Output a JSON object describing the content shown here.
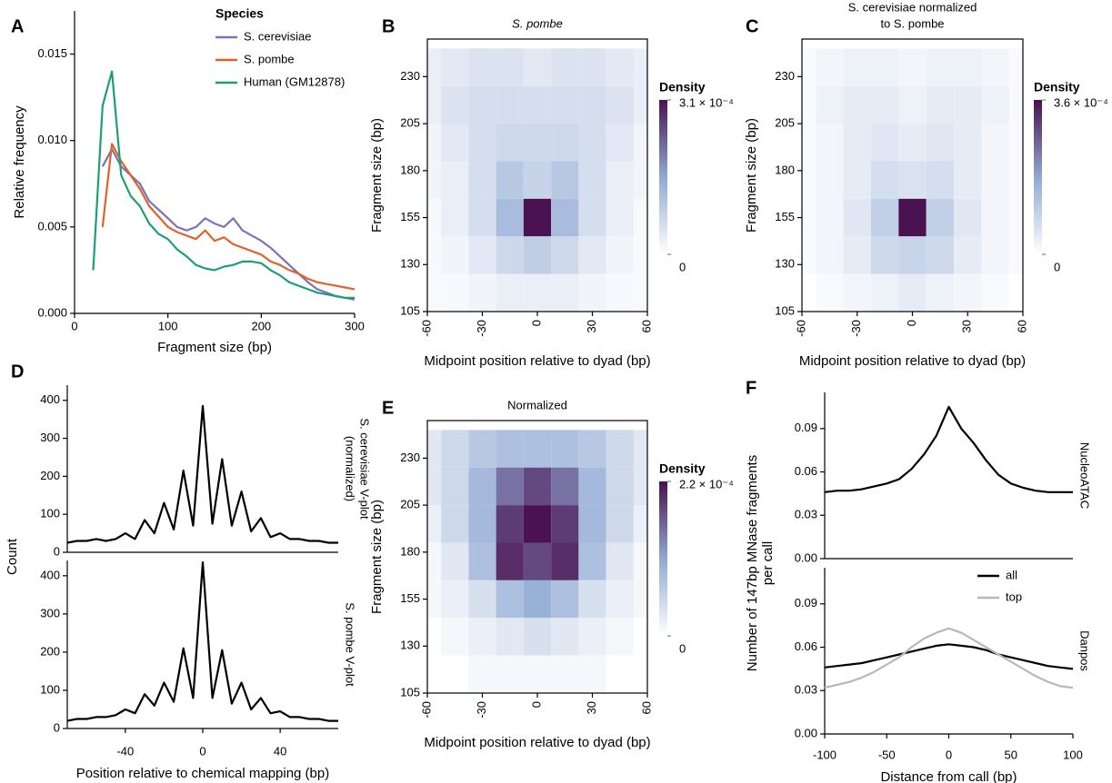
{
  "chart_data": [
    {
      "type": "line",
      "panel": "A",
      "x": [
        20,
        30,
        40,
        50,
        60,
        70,
        80,
        90,
        100,
        110,
        120,
        130,
        140,
        150,
        160,
        170,
        180,
        190,
        200,
        210,
        220,
        230,
        240,
        250,
        260,
        270,
        280,
        290,
        300
      ],
      "xlim": [
        0,
        300
      ],
      "xticks": [
        0,
        100,
        200,
        300
      ],
      "ylim": [
        0,
        0.0175
      ],
      "yticks": [
        {
          "value": 0,
          "label": "0.000"
        },
        {
          "value": 0.005,
          "label": "0.005"
        },
        {
          "value": 0.01,
          "label": "0.010"
        },
        {
          "value": 0.015,
          "label": "0.015"
        }
      ],
      "xlabel": "Fragment size (bp)",
      "ylabel": "Relative frequency",
      "legend_title": "Species",
      "legend": "top-right",
      "series": [
        {
          "name": "S. cerevisiae",
          "color": "#7b72b8",
          "values": [
            null,
            0.0085,
            0.0095,
            0.0085,
            0.008,
            0.0075,
            0.0065,
            0.006,
            0.0055,
            0.005,
            0.0048,
            0.005,
            0.0055,
            0.0052,
            0.005,
            0.0055,
            0.0048,
            0.0045,
            0.0042,
            0.0038,
            0.0033,
            0.0028,
            0.0023,
            0.0018,
            0.0014,
            0.0012,
            0.001,
            0.0009,
            0.0008
          ]
        },
        {
          "name": "S. pombe",
          "color": "#e0622a",
          "values": [
            null,
            0.005,
            0.0098,
            0.0088,
            0.008,
            0.0072,
            0.0062,
            0.0056,
            0.005,
            0.0047,
            0.0045,
            0.0043,
            0.0048,
            0.0042,
            0.0044,
            0.004,
            0.0038,
            0.0036,
            0.0034,
            0.003,
            0.0028,
            0.0025,
            0.0023,
            0.002,
            0.0018,
            0.0017,
            0.0016,
            0.0015,
            0.0014
          ]
        },
        {
          "name": "Human (GM12878)",
          "color": "#1e9e77",
          "values": [
            0.0025,
            0.012,
            0.014,
            0.008,
            0.0068,
            0.0062,
            0.0052,
            0.0046,
            0.0043,
            0.0037,
            0.0033,
            0.0028,
            0.0026,
            0.0025,
            0.0027,
            0.0028,
            0.003,
            0.003,
            0.0029,
            0.0025,
            0.0022,
            0.0018,
            0.0016,
            0.0014,
            0.0012,
            0.0011,
            0.001,
            0.0009,
            0.0009
          ]
        }
      ]
    },
    {
      "type": "heatmap",
      "panel": "B",
      "title": [
        "S. pombe"
      ],
      "x": [
        -60,
        -45,
        -30,
        -15,
        0,
        15,
        30,
        45,
        60
      ],
      "y": [
        235,
        215,
        195,
        175,
        155,
        135,
        115
      ],
      "z": [
        [
          3e-05,
          4e-05,
          5e-05,
          5e-05,
          4e-05,
          5e-05,
          5e-05,
          4e-05,
          3e-05
        ],
        [
          3e-05,
          5e-05,
          6e-05,
          6e-05,
          6e-05,
          6e-05,
          6e-05,
          5e-05,
          3e-05
        ],
        [
          2e-05,
          4e-05,
          6e-05,
          7e-05,
          7e-05,
          7e-05,
          6e-05,
          4e-05,
          2e-05
        ],
        [
          2e-05,
          3e-05,
          6e-05,
          0.0001,
          8e-05,
          0.0001,
          6e-05,
          3e-05,
          2e-05
        ],
        [
          1e-05,
          3e-05,
          6e-05,
          0.00012,
          0.00031,
          0.00012,
          6e-05,
          3e-05,
          1e-05
        ],
        [
          1e-05,
          2e-05,
          4e-05,
          7e-05,
          9e-05,
          7e-05,
          4e-05,
          2e-05,
          1e-05
        ],
        [
          1e-05,
          1e-05,
          2e-05,
          3e-05,
          3e-05,
          3e-05,
          2e-05,
          1e-05,
          1e-05
        ]
      ],
      "xlim": [
        -60,
        60
      ],
      "xticks": [
        -60,
        -30,
        0,
        30,
        60
      ],
      "ylim": [
        105,
        250
      ],
      "yticks": [
        105,
        130,
        155,
        180,
        205,
        230
      ],
      "xlabel": "Midpoint position relative to dyad (bp)",
      "ylabel": "Fragment size (bp)",
      "colorbar": {
        "title": "Density",
        "ticks": [
          0,
          {
            "value": 0.00031,
            "label": "3.1 × 10⁻⁴"
          }
        ]
      }
    },
    {
      "type": "heatmap",
      "panel": "C",
      "title": [
        "S. cerevisiae normalized",
        "to S. pombe"
      ],
      "x": [
        -60,
        -45,
        -30,
        -15,
        0,
        15,
        30,
        45,
        60
      ],
      "y": [
        235,
        215,
        195,
        175,
        155,
        135,
        115
      ],
      "z": [
        [
          1e-05,
          2e-05,
          3e-05,
          3e-05,
          2e-05,
          3e-05,
          3e-05,
          2e-05,
          1e-05
        ],
        [
          1e-05,
          3e-05,
          4e-05,
          4e-05,
          3e-05,
          4e-05,
          4e-05,
          3e-05,
          1e-05
        ],
        [
          1e-05,
          2e-05,
          4e-05,
          5e-05,
          4e-05,
          5e-05,
          4e-05,
          2e-05,
          1e-05
        ],
        [
          1e-05,
          2e-05,
          4e-05,
          7e-05,
          6e-05,
          7e-05,
          4e-05,
          2e-05,
          1e-05
        ],
        [
          1e-05,
          2e-05,
          5e-05,
          0.0001,
          0.00036,
          0.0001,
          5e-05,
          2e-05,
          1e-05
        ],
        [
          1e-05,
          2e-05,
          4e-05,
          8e-05,
          9e-05,
          8e-05,
          4e-05,
          2e-05,
          1e-05
        ],
        [
          0,
          1e-05,
          2e-05,
          3e-05,
          4e-05,
          3e-05,
          2e-05,
          1e-05,
          0
        ]
      ],
      "xlim": [
        -60,
        60
      ],
      "xticks": [
        -60,
        -30,
        0,
        30,
        60
      ],
      "ylim": [
        105,
        250
      ],
      "yticks": [
        105,
        130,
        155,
        180,
        205,
        230
      ],
      "xlabel": "Midpoint position relative to dyad (bp)",
      "ylabel": "Fragment size (bp)",
      "colorbar": {
        "title": "Density",
        "ticks": [
          0,
          {
            "value": 0.00036,
            "label": "3.6 × 10⁻⁴"
          }
        ]
      }
    },
    {
      "type": "line",
      "panel": "D",
      "x": [
        -70,
        -65,
        -60,
        -55,
        -50,
        -45,
        -40,
        -35,
        -30,
        -25,
        -20,
        -15,
        -10,
        -5,
        0,
        5,
        10,
        15,
        20,
        25,
        30,
        35,
        40,
        45,
        50,
        55,
        60,
        65,
        70
      ],
      "xlim": [
        -70,
        70
      ],
      "xticks": [
        -40,
        0,
        40
      ],
      "xlabel": "Position relative to chemical mapping (bp)",
      "ylabel": "Count",
      "panels": [
        {
          "title": [
            "S. cerevisiae V-plot",
            "(normalized)"
          ],
          "ylim": [
            0,
            440
          ],
          "yticks": [
            0,
            100,
            200,
            300,
            400
          ],
          "series": [
            {
              "color": "#000000",
              "values": [
                25,
                30,
                30,
                35,
                30,
                35,
                50,
                35,
                85,
                50,
                130,
                60,
                215,
                70,
                385,
                75,
                245,
                70,
                160,
                55,
                90,
                40,
                50,
                35,
                35,
                30,
                30,
                25,
                25
              ]
            }
          ]
        },
        {
          "title": [
            "S. pombe V-plot"
          ],
          "ylim": [
            0,
            440
          ],
          "yticks": [
            0,
            100,
            200,
            300,
            400
          ],
          "series": [
            {
              "color": "#000000",
              "values": [
                20,
                25,
                25,
                30,
                30,
                35,
                50,
                40,
                90,
                60,
                120,
                70,
                210,
                80,
                435,
                80,
                205,
                65,
                120,
                50,
                80,
                40,
                45,
                30,
                30,
                25,
                25,
                20,
                20
              ]
            }
          ]
        }
      ]
    },
    {
      "type": "heatmap",
      "panel": "E",
      "title": [
        "Normalized"
      ],
      "x": [
        -60,
        -45,
        -30,
        -15,
        0,
        15,
        30,
        45,
        60
      ],
      "y": [
        235,
        215,
        195,
        175,
        155,
        135,
        115
      ],
      "z": [
        [
          3e-05,
          5e-05,
          7e-05,
          8e-05,
          8e-05,
          8e-05,
          7e-05,
          5e-05,
          3e-05
        ],
        [
          3e-05,
          5e-05,
          9e-05,
          0.00015,
          0.00018,
          0.00015,
          9e-05,
          5e-05,
          3e-05
        ],
        [
          2e-05,
          5e-05,
          9e-05,
          0.00019,
          0.00022,
          0.00019,
          9e-05,
          5e-05,
          2e-05
        ],
        [
          1e-05,
          3e-05,
          8e-05,
          0.0002,
          0.00018,
          0.0002,
          8e-05,
          3e-05,
          1e-05
        ],
        [
          1e-05,
          2e-05,
          4e-05,
          8e-05,
          0.0001,
          8e-05,
          4e-05,
          2e-05,
          1e-05
        ],
        [
          0,
          1e-05,
          2e-05,
          3e-05,
          4e-05,
          3e-05,
          2e-05,
          1e-05,
          0
        ],
        [
          0,
          0,
          1e-05,
          1e-05,
          1e-05,
          1e-05,
          1e-05,
          0,
          0
        ]
      ],
      "xlim": [
        -60,
        60
      ],
      "xticks": [
        -60,
        -30,
        0,
        30,
        60
      ],
      "ylim": [
        105,
        250
      ],
      "yticks": [
        105,
        130,
        155,
        180,
        205,
        230
      ],
      "xlabel": "Midpoint position relative to dyad (bp)",
      "ylabel": "Fragment size (bp)",
      "colorbar": {
        "title": "Density",
        "ticks": [
          0,
          {
            "value": 0.00022,
            "label": "2.2 × 10⁻⁴"
          }
        ]
      }
    },
    {
      "type": "line",
      "panel": "F",
      "x": [
        -100,
        -90,
        -80,
        -70,
        -60,
        -50,
        -40,
        -30,
        -20,
        -10,
        0,
        10,
        20,
        30,
        40,
        50,
        60,
        70,
        80,
        90,
        100
      ],
      "xlim": [
        -100,
        100
      ],
      "xticks": [
        -100,
        -50,
        0,
        50,
        100
      ],
      "xlabel": "Distance from call (bp)",
      "ylabel": [
        "Number of 147bp MNase fragments",
        "per call"
      ],
      "legend": "bottom-right",
      "panels": [
        {
          "title": [
            "NucleoATAC"
          ],
          "ylim": [
            0,
            0.115
          ],
          "yticks": [
            {
              "value": 0,
              "label": "0.00"
            },
            {
              "value": 0.03,
              "label": "0.03"
            },
            {
              "value": 0.06,
              "label": "0.06"
            },
            {
              "value": 0.09,
              "label": "0.09"
            }
          ],
          "series": [
            {
              "color": "#000000",
              "values": [
                0.046,
                0.047,
                0.047,
                0.048,
                0.05,
                0.052,
                0.055,
                0.062,
                0.072,
                0.085,
                0.105,
                0.09,
                0.08,
                0.068,
                0.058,
                0.052,
                0.049,
                0.047,
                0.046,
                0.046,
                0.046
              ]
            }
          ]
        },
        {
          "title": [
            "Danpos"
          ],
          "ylim": [
            0,
            0.115
          ],
          "yticks": [
            {
              "value": 0,
              "label": "0.00"
            },
            {
              "value": 0.03,
              "label": "0.03"
            },
            {
              "value": 0.06,
              "label": "0.06"
            },
            {
              "value": 0.09,
              "label": "0.09"
            }
          ],
          "series": [
            {
              "name": "all",
              "color": "#000000",
              "values": [
                0.046,
                0.047,
                0.048,
                0.049,
                0.051,
                0.053,
                0.055,
                0.057,
                0.059,
                0.061,
                0.062,
                0.061,
                0.06,
                0.058,
                0.055,
                0.053,
                0.051,
                0.049,
                0.047,
                0.046,
                0.045
              ]
            },
            {
              "name": "top",
              "color": "#b8b8b8",
              "values": [
                0.032,
                0.034,
                0.036,
                0.039,
                0.043,
                0.048,
                0.053,
                0.06,
                0.066,
                0.07,
                0.073,
                0.07,
                0.065,
                0.06,
                0.055,
                0.05,
                0.045,
                0.04,
                0.036,
                0.033,
                0.032
              ]
            }
          ]
        }
      ]
    }
  ]
}
